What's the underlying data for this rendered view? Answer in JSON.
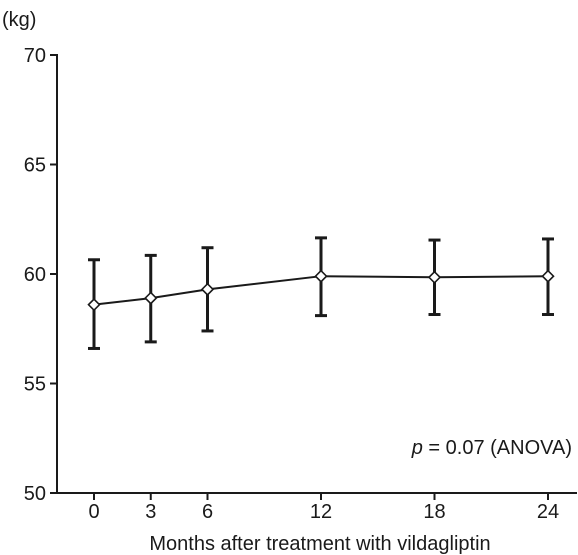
{
  "chart_data": {
    "type": "line",
    "unit_label": "(kg)",
    "xlabel": "Months after treatment with vildagliptin",
    "ylabel": "",
    "x": [
      0,
      3,
      6,
      12,
      18,
      24
    ],
    "xticks": [
      0,
      3,
      6,
      12,
      18,
      24
    ],
    "ylim": [
      50,
      70
    ],
    "yticks": [
      50,
      55,
      60,
      65,
      70
    ],
    "grid": false,
    "series": [
      {
        "values": [
          58.6,
          58.9,
          59.3,
          59.9,
          59.85,
          59.9
        ],
        "error_low": [
          56.6,
          56.9,
          57.4,
          58.1,
          58.15,
          58.15
        ],
        "error_high": [
          60.65,
          60.85,
          61.2,
          61.65,
          61.55,
          61.6
        ],
        "marker": "open-diamond",
        "color": "#1a1a1a"
      }
    ],
    "annotation": {
      "p_symbol": "p",
      "text": " = 0.07 (ANOVA)"
    }
  }
}
